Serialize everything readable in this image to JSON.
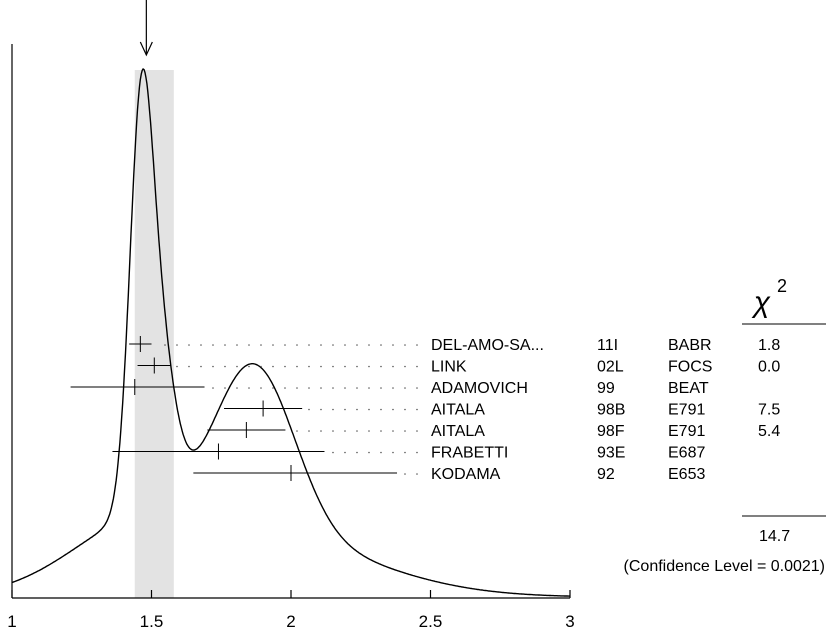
{
  "chart_data": {
    "type": "ideogram",
    "title": "",
    "xlabel": "",
    "ylabel": "",
    "xlim": [
      1,
      3
    ],
    "xticks": [
      {
        "value": 1,
        "label": "1"
      },
      {
        "value": 1.5,
        "label": "1.5"
      },
      {
        "value": 2,
        "label": "2"
      },
      {
        "value": 2.5,
        "label": "2.5"
      },
      {
        "value": 3,
        "label": "3"
      }
    ],
    "weighted_average": 1.46,
    "average_band": [
      1.44,
      1.58
    ],
    "measurements": [
      {
        "author": "DEL-AMO-SA...",
        "year": "11I",
        "experiment": "BABR",
        "value": 1.46,
        "low": 1.42,
        "high": 1.5,
        "chi2": "1.8"
      },
      {
        "author": "LINK",
        "year": "02L",
        "experiment": "FOCS",
        "value": 1.51,
        "low": 1.45,
        "high": 1.57,
        "chi2": "0.0"
      },
      {
        "author": "ADAMOVICH",
        "year": "99",
        "experiment": "BEAT",
        "value": 1.44,
        "low": 1.21,
        "high": 1.69,
        "chi2": ""
      },
      {
        "author": "AITALA",
        "year": "98B",
        "experiment": "E791",
        "value": 1.9,
        "low": 1.76,
        "high": 2.04,
        "chi2": "7.5"
      },
      {
        "author": "AITALA",
        "year": "98F",
        "experiment": "E791",
        "value": 1.84,
        "low": 1.7,
        "high": 1.98,
        "chi2": "5.4"
      },
      {
        "author": "FRABETTI",
        "year": "93E",
        "experiment": "E687",
        "value": 1.74,
        "low": 1.36,
        "high": 2.12,
        "chi2": ""
      },
      {
        "author": "KODAMA",
        "year": "92",
        "experiment": "E653",
        "value": 2.0,
        "low": 1.65,
        "high": 2.38,
        "chi2": ""
      }
    ],
    "chi2_header": {
      "symbol": "χ",
      "superscript": "2"
    },
    "chi2_total": "14.7",
    "confidence_level_text": "(Confidence Level = 0.0021)"
  }
}
